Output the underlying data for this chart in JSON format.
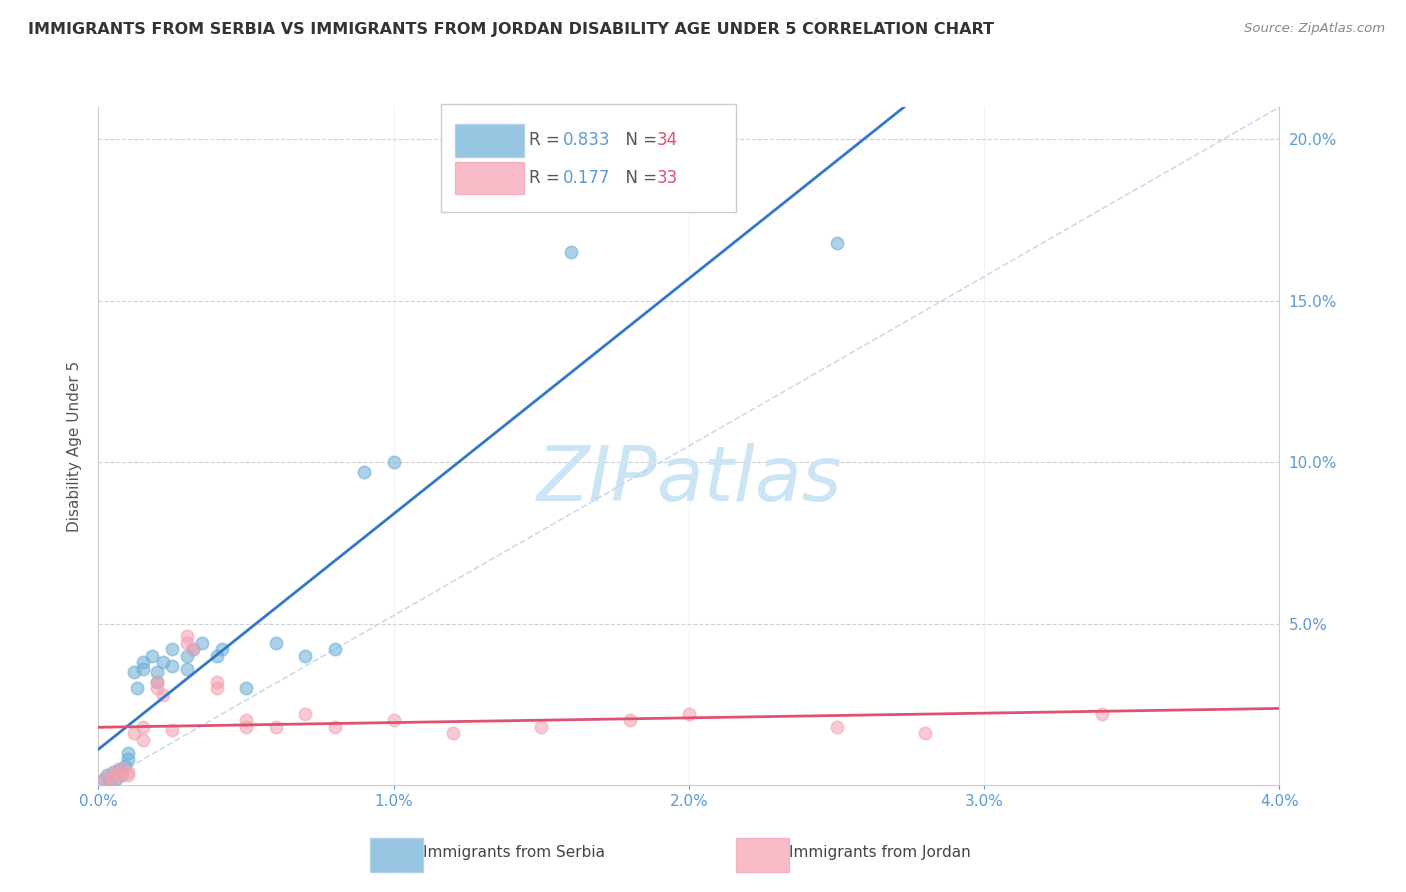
{
  "title": "IMMIGRANTS FROM SERBIA VS IMMIGRANTS FROM JORDAN DISABILITY AGE UNDER 5 CORRELATION CHART",
  "source": "Source: ZipAtlas.com",
  "ylabel": "Disability Age Under 5",
  "legend_label_serbia": "Immigrants from Serbia",
  "legend_label_jordan": "Immigrants from Jordan",
  "R_serbia": 0.833,
  "N_serbia": 34,
  "R_jordan": 0.177,
  "N_jordan": 33,
  "serbia_color": "#6baed6",
  "jordan_color": "#f4a0b0",
  "regression_line_serbia_color": "#3378c8",
  "regression_line_jordan_color": "#e05070",
  "diag_line_color": "#b8d4ec",
  "xlim": [
    0.0,
    0.04
  ],
  "ylim": [
    0.0,
    0.21
  ],
  "x_ticks": [
    0.0,
    0.01,
    0.02,
    0.03,
    0.04
  ],
  "x_tick_labels": [
    "0.0%",
    "1.0%",
    "2.0%",
    "3.0%",
    "4.0%"
  ],
  "y_ticks_right": [
    0.05,
    0.1,
    0.15,
    0.2
  ],
  "y_tick_labels_right": [
    "5.0%",
    "10.0%",
    "15.0%",
    "20.0%"
  ],
  "watermark": "ZIPatlas",
  "watermark_color": "#cce5f5",
  "background_color": "#ffffff",
  "tick_label_color": "#5b9bd5",
  "serbia_x": [
    0.0002,
    0.0003,
    0.0004,
    0.0005,
    0.0006,
    0.0007,
    0.0008,
    0.0009,
    0.001,
    0.001,
    0.0012,
    0.0013,
    0.0015,
    0.0015,
    0.0018,
    0.002,
    0.002,
    0.0022,
    0.0025,
    0.0025,
    0.003,
    0.003,
    0.0032,
    0.0035,
    0.004,
    0.0042,
    0.005,
    0.006,
    0.007,
    0.008,
    0.009,
    0.01,
    0.016,
    0.025
  ],
  "serbia_y": [
    0.002,
    0.003,
    0.001,
    0.004,
    0.002,
    0.005,
    0.003,
    0.006,
    0.01,
    0.008,
    0.035,
    0.03,
    0.038,
    0.036,
    0.04,
    0.035,
    0.032,
    0.038,
    0.037,
    0.042,
    0.04,
    0.036,
    0.042,
    0.044,
    0.04,
    0.042,
    0.03,
    0.044,
    0.04,
    0.042,
    0.097,
    0.1,
    0.165,
    0.168
  ],
  "jordan_x": [
    0.0002,
    0.0004,
    0.0005,
    0.0006,
    0.0007,
    0.0008,
    0.001,
    0.001,
    0.0012,
    0.0015,
    0.0015,
    0.002,
    0.002,
    0.0022,
    0.0025,
    0.003,
    0.003,
    0.0032,
    0.004,
    0.004,
    0.005,
    0.005,
    0.006,
    0.007,
    0.008,
    0.01,
    0.012,
    0.015,
    0.018,
    0.02,
    0.025,
    0.028,
    0.034
  ],
  "jordan_y": [
    0.002,
    0.003,
    0.002,
    0.004,
    0.003,
    0.005,
    0.004,
    0.003,
    0.016,
    0.018,
    0.014,
    0.03,
    0.032,
    0.028,
    0.017,
    0.044,
    0.046,
    0.042,
    0.03,
    0.032,
    0.018,
    0.02,
    0.018,
    0.022,
    0.018,
    0.02,
    0.016,
    0.018,
    0.02,
    0.022,
    0.018,
    0.016,
    0.022
  ]
}
